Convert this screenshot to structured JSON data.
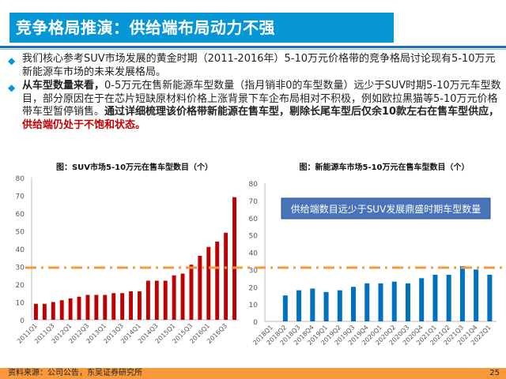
{
  "header": {
    "title": "竞争格局推演：供给端布局动力不强"
  },
  "bullets": [
    {
      "text": "我们核心参考SUV市场发展的黄金时期（2011-2016年）5-10万元价格带的竞争格局讨论现有5-10万元新能源车市场的未来发展格局。"
    },
    {
      "bold_lead": "从车型数量来看，",
      "text": "0-5万元在售新能源车型数量（指月销非0的车型数量）远少于SUV时期5-10万元车型数目，部分原因在于在芯片短缺原材料价格上涨背景下车企布局相对不积极，例如欧拉黑猫等5-10万元价格带车型暂停销售。",
      "bold_tail": "通过详细梳理该价格带新能源在售车型，剔除长尾车型后仅余10款左右在售车型供应，",
      "red_tail": "供给端仍处于不饱和状态。"
    }
  ],
  "footer": {
    "source": "资料来源：公司公告，东吴证券研究所",
    "page": "25"
  },
  "colors": {
    "title_bg": "#0796d5",
    "suv_bar": "#c00000",
    "nev_bar": "#0070c0",
    "ref_line": "#f7993a",
    "footer_bg": "#f7993a"
  },
  "chart_data": [
    {
      "type": "bar",
      "title": "图：SUV市场5-10万元在售车型数目（个）",
      "ylim": [
        0,
        80
      ],
      "yticks": [
        0,
        10,
        20,
        30,
        40,
        50,
        60,
        70,
        80
      ],
      "reference_line": 30,
      "categories": [
        "2011Q1",
        "2011Q2",
        "2011Q3",
        "2011Q4",
        "2012Q1",
        "2012Q2",
        "2012Q3",
        "2012Q4",
        "2013Q1",
        "2013Q2",
        "2013Q3",
        "2013Q4",
        "2014Q1",
        "2014Q2",
        "2014Q3",
        "2014Q4",
        "2015Q1",
        "2015Q2",
        "2015Q3",
        "2015Q4",
        "2016Q1",
        "2016Q2",
        "2016Q3",
        "2016Q4"
      ],
      "values": [
        9,
        9,
        10,
        11,
        12,
        13,
        14,
        14,
        14,
        15,
        15,
        16,
        16,
        22,
        22,
        22,
        25,
        26,
        31,
        36,
        41,
        44,
        49,
        69
      ]
    },
    {
      "type": "bar",
      "title": "图：新能源车市场5-10万元在售车型数目（个）",
      "ylim": [
        0,
        80
      ],
      "yticks": [
        0,
        10,
        20,
        30,
        40,
        50,
        60,
        70,
        80
      ],
      "reference_line": 31,
      "annotation": "供给端数目远少于SUV发展鼎盛时期车型数量",
      "categories": [
        "2018Q1",
        "2018Q2",
        "2018Q3",
        "2018Q4",
        "2019Q1",
        "2019Q2",
        "2019Q3",
        "2019Q4",
        "2020Q1",
        "2020Q2",
        "2020Q3",
        "2020Q4",
        "2021Q1",
        "2021Q2",
        "2021Q3",
        "2021Q4",
        "2022Q1"
      ],
      "values": [
        0,
        15,
        18,
        19,
        17,
        18,
        20,
        22,
        22,
        23,
        22,
        25,
        27,
        27,
        32,
        30,
        27
      ]
    }
  ]
}
